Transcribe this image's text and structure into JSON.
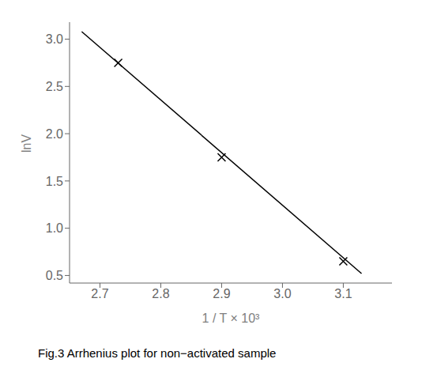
{
  "chart_data": {
    "type": "scatter",
    "xlabel": "1 / T × 10³",
    "ylabel": "lnV",
    "caption": "Fig.3 Arrhenius plot for non−activated sample",
    "series": [
      {
        "type": "line",
        "x": [
          2.67,
          3.13
        ],
        "values": [
          3.08,
          0.52
        ],
        "color": "#000000"
      },
      {
        "type": "scatter",
        "x": [
          2.73,
          2.9,
          3.1
        ],
        "values": [
          2.75,
          1.75,
          0.65
        ],
        "color": "#000000",
        "marker": "x"
      }
    ],
    "xlim": [
      2.65,
      3.18
    ],
    "ylim": [
      0.42,
      3.18
    ],
    "xticks": [
      2.7,
      2.8,
      2.9,
      {
        "value": 3.0,
        "label": "3.0"
      },
      3.1
    ],
    "yticks": [
      0.5,
      {
        "value": 1.0,
        "label": "1.0"
      },
      1.5,
      {
        "value": 2.0,
        "label": "2.0"
      },
      2.5,
      {
        "value": 3.0,
        "label": "3.0"
      }
    ],
    "grid": false
  }
}
